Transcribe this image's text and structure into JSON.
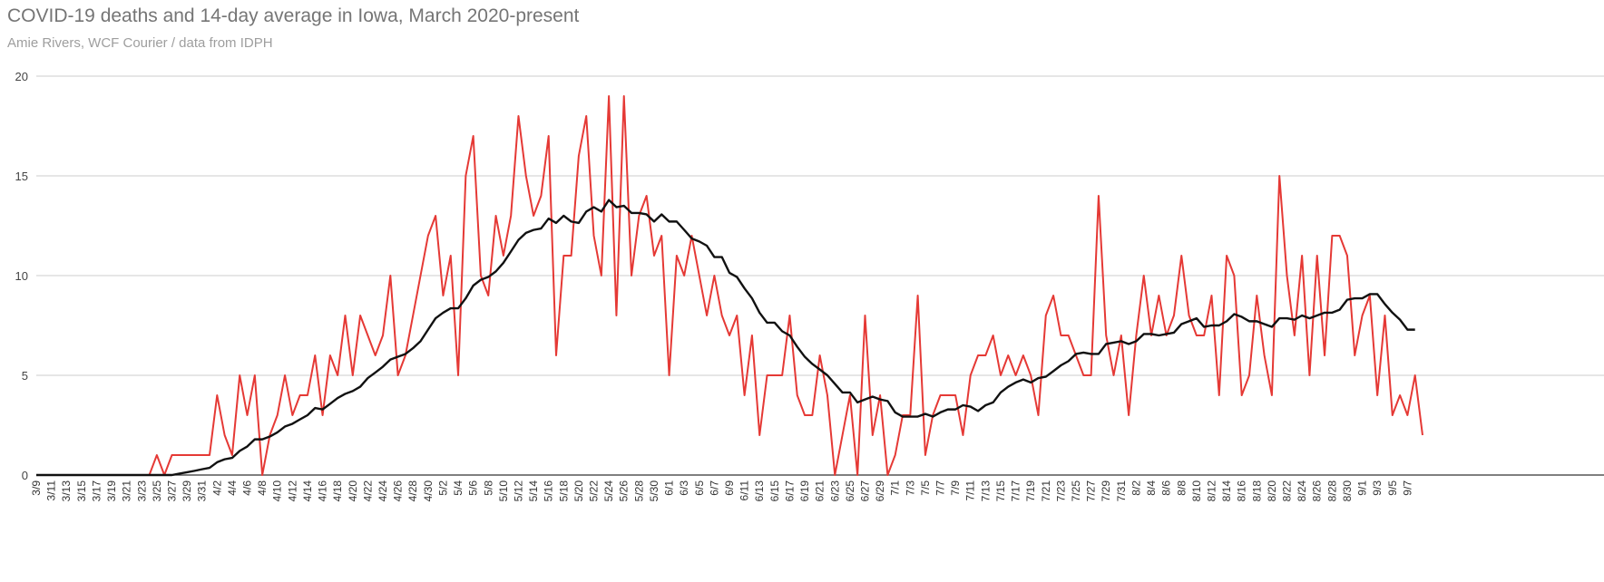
{
  "chart_data": {
    "type": "line",
    "title": "COVID-19 deaths and 14-day average in Iowa, March 2020-present",
    "subtitle": "Amie Rivers, WCF Courier / data from IDPH",
    "xlabel": "",
    "ylabel": "",
    "ylim": [
      0,
      20
    ],
    "yticks": [
      "0",
      "5",
      "10",
      "15",
      "20"
    ],
    "grid": true,
    "legend": "none",
    "x_start": "3/9",
    "x_tick_labels": [
      "3/9",
      "3/11",
      "3/13",
      "3/15",
      "3/17",
      "3/19",
      "3/21",
      "3/23",
      "3/25",
      "3/27",
      "3/29",
      "3/31",
      "4/2",
      "4/4",
      "4/6",
      "4/8",
      "4/10",
      "4/12",
      "4/14",
      "4/16",
      "4/18",
      "4/20",
      "4/22",
      "4/24",
      "4/26",
      "4/28",
      "4/30",
      "5/2",
      "5/4",
      "5/6",
      "5/8",
      "5/10",
      "5/12",
      "5/14",
      "5/16",
      "5/18",
      "5/20",
      "5/22",
      "5/24",
      "5/26",
      "5/28",
      "5/30",
      "6/1",
      "6/3",
      "6/5",
      "6/7",
      "6/9",
      "6/11",
      "6/13",
      "6/15",
      "6/17",
      "6/19",
      "6/21",
      "6/23",
      "6/25",
      "6/27",
      "6/29",
      "7/1",
      "7/3",
      "7/5",
      "7/7",
      "7/9",
      "7/11",
      "7/13",
      "7/15",
      "7/17",
      "7/19",
      "7/21",
      "7/23",
      "7/25",
      "7/27",
      "7/29",
      "7/31",
      "8/2",
      "8/4",
      "8/6",
      "8/8",
      "8/10",
      "8/12",
      "8/14",
      "8/16",
      "8/18",
      "8/20",
      "8/22",
      "8/24",
      "8/26",
      "8/28",
      "8/30",
      "9/1",
      "9/3",
      "9/5",
      "9/7"
    ],
    "series": [
      {
        "color": "#e53935",
        "values": [
          0,
          0,
          0,
          0,
          0,
          0,
          0,
          0,
          0,
          0,
          0,
          0,
          0,
          0,
          0,
          0,
          1,
          0,
          1,
          1,
          1,
          1,
          1,
          1,
          4,
          2,
          1,
          5,
          3,
          5,
          0,
          2,
          3,
          5,
          3,
          4,
          4,
          6,
          3,
          6,
          5,
          8,
          5,
          8,
          7,
          6,
          7,
          10,
          5,
          6,
          8,
          10,
          12,
          13,
          9,
          11,
          5,
          15,
          17,
          10,
          9,
          13,
          11,
          13,
          18,
          15,
          13,
          14,
          17,
          6,
          11,
          11,
          16,
          18,
          12,
          10,
          19,
          8,
          19,
          10,
          13,
          14,
          11,
          12,
          5,
          11,
          10,
          12,
          10,
          8,
          10,
          8,
          7,
          8,
          4,
          7,
          2,
          5,
          5,
          5,
          8,
          4,
          3,
          3,
          6,
          4,
          0,
          2,
          4,
          0,
          8,
          2,
          4,
          0,
          1,
          3,
          3,
          9,
          1,
          3,
          4,
          4,
          4,
          2,
          5,
          6,
          6,
          7,
          5,
          6,
          5,
          6,
          5,
          3,
          8,
          9,
          7,
          7,
          6,
          5,
          5,
          14,
          7,
          5,
          7,
          3,
          7,
          10,
          7,
          9,
          7,
          8,
          11,
          8,
          7,
          7,
          9,
          4,
          11,
          10,
          4,
          5,
          9,
          6,
          4,
          15,
          10,
          7,
          11,
          5,
          11,
          6,
          12,
          12,
          11,
          6,
          8,
          9,
          4,
          8,
          3,
          4,
          3,
          5,
          2
        ],
        "dash": "solid"
      },
      {
        "color": "#111111",
        "values": [
          0,
          0,
          0,
          0,
          0,
          0,
          0,
          0,
          0,
          0,
          0,
          0,
          0,
          0,
          0,
          0,
          0,
          0,
          0,
          0.07,
          0.14,
          0.21,
          0.29,
          0.36,
          0.64,
          0.79,
          0.86,
          1.21,
          1.43,
          1.79,
          1.79,
          1.93,
          2.14,
          2.43,
          2.57,
          2.79,
          3,
          3.36,
          3.29,
          3.57,
          3.86,
          4.07,
          4.21,
          4.43,
          4.86,
          5.14,
          5.43,
          5.79,
          5.93,
          6.07,
          6.36,
          6.71,
          7.29,
          7.86,
          8.14,
          8.36,
          8.36,
          8.86,
          9.5,
          9.79,
          9.93,
          10.21,
          10.64,
          11.21,
          11.79,
          12.14,
          12.29,
          12.36,
          12.86,
          12.64,
          13,
          12.71,
          12.64,
          13.21,
          13.43,
          13.21,
          13.79,
          13.43,
          13.5,
          13.14,
          13.14,
          13.07,
          12.71,
          13.07,
          12.71,
          12.71,
          12.29,
          11.86,
          11.71,
          11.5,
          10.93,
          10.93,
          10.14,
          9.93,
          9.36,
          8.86,
          8.14,
          7.64,
          7.64,
          7.21,
          7,
          6.43,
          5.93,
          5.57,
          5.29,
          5,
          4.57,
          4.14,
          4.14,
          3.64,
          3.79,
          3.93,
          3.79,
          3.71,
          3.14,
          2.93,
          2.93,
          2.93,
          3.07,
          2.93,
          3.14,
          3.29,
          3.29,
          3.5,
          3.43,
          3.21,
          3.5,
          3.64,
          4.14,
          4.43,
          4.64,
          4.79,
          4.64,
          4.86,
          4.93,
          5.21,
          5.5,
          5.71,
          6.07,
          6.14,
          6.07,
          6.07,
          6.57,
          6.64,
          6.71,
          6.57,
          6.71,
          7.07,
          7.07,
          7,
          7.07,
          7.14,
          7.57,
          7.71,
          7.86,
          7.43,
          7.5,
          7.5,
          7.71,
          8.07,
          7.93,
          7.71,
          7.71,
          7.57,
          7.43,
          7.86,
          7.86,
          7.79,
          8,
          7.86,
          8,
          8.14,
          8.14,
          8.29,
          8.79,
          8.86,
          8.86,
          9.07,
          9.07,
          8.57,
          8.14,
          7.79,
          7.29,
          7.29
        ],
        "dash": "solid"
      }
    ]
  }
}
